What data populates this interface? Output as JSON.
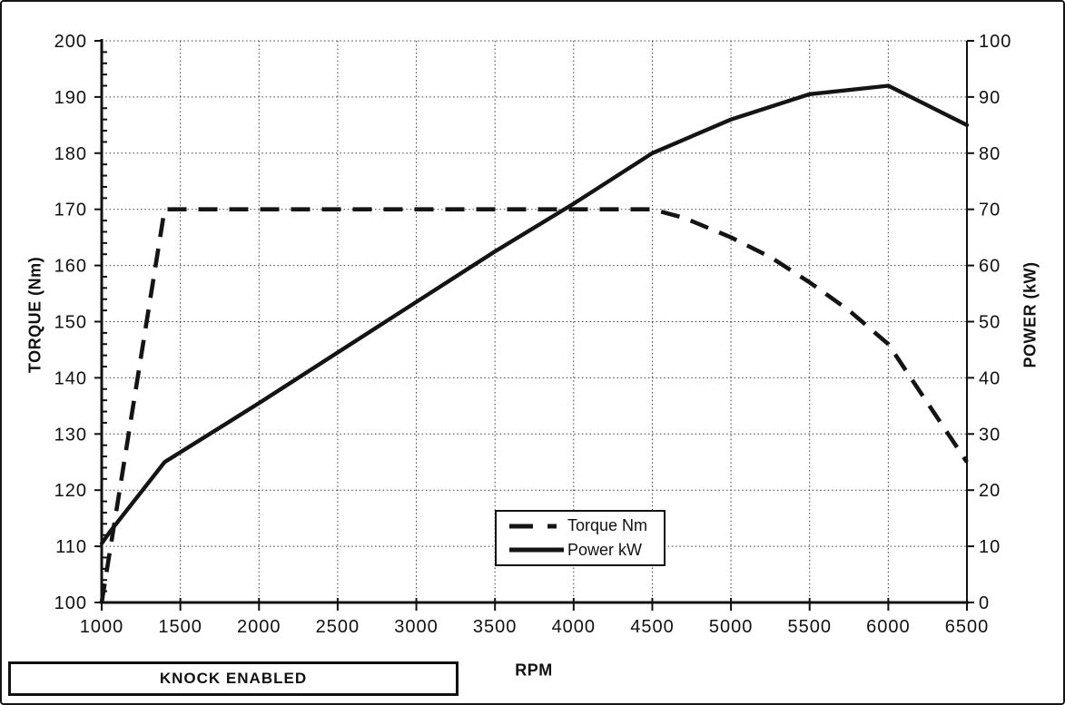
{
  "chart_data": {
    "type": "line",
    "title": "",
    "xlabel": "RPM",
    "ylabel_left": "TORQUE (Nm)",
    "ylabel_right": "POWER (kW)",
    "x_range": [
      1000,
      6500
    ],
    "x_ticks": [
      1000,
      1500,
      2000,
      2500,
      3000,
      3500,
      4000,
      4500,
      5000,
      5500,
      6000,
      6500
    ],
    "y_left_range": [
      100,
      200
    ],
    "y_left_ticks": [
      100,
      110,
      120,
      130,
      140,
      150,
      160,
      170,
      180,
      190,
      200
    ],
    "y_left_minor_step": 2,
    "y_right_range": [
      0,
      100
    ],
    "y_right_ticks": [
      0,
      10,
      20,
      30,
      40,
      50,
      60,
      70,
      80,
      90,
      100
    ],
    "grid": "dotted",
    "legend_position": "inside-lower-center",
    "line_color": "#141414",
    "series": [
      {
        "name": "Torque Nm",
        "axis": "left",
        "style": "dashed",
        "points": [
          [
            1000,
            100
          ],
          [
            1400,
            170
          ],
          [
            4500,
            170
          ],
          [
            4700,
            168.5
          ],
          [
            5000,
            165
          ],
          [
            5250,
            161.5
          ],
          [
            5500,
            157
          ],
          [
            5750,
            152
          ],
          [
            6000,
            146
          ],
          [
            6500,
            125
          ]
        ]
      },
      {
        "name": "Power kW",
        "axis": "right",
        "style": "solid",
        "points": [
          [
            1000,
            10.5
          ],
          [
            1050,
            12.5
          ],
          [
            1400,
            25
          ],
          [
            2000,
            35.5
          ],
          [
            2500,
            44.5
          ],
          [
            3000,
            53.5
          ],
          [
            3500,
            62.5
          ],
          [
            4000,
            71
          ],
          [
            4500,
            80
          ],
          [
            5000,
            86
          ],
          [
            5500,
            90.5
          ],
          [
            6000,
            92
          ],
          [
            6500,
            85
          ]
        ]
      }
    ],
    "annotation": "KNOCK ENABLED"
  }
}
